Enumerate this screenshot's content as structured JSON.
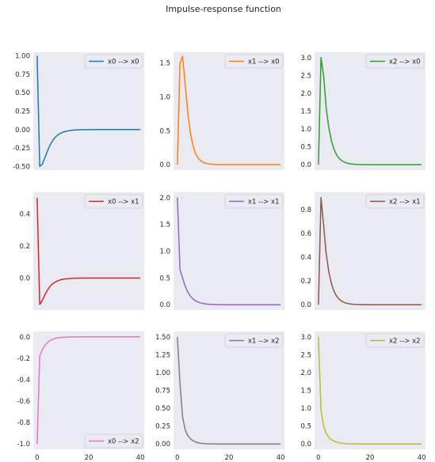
{
  "title": "Impulse-response function",
  "chart_data": {
    "type": "line",
    "title": "Impulse-response function",
    "grid": false,
    "x_start": 0,
    "x_step": 1,
    "panels": [
      {
        "name": "x0 --> x0",
        "color": "#1f77b4",
        "legend_loc": "upper right",
        "ylim": [
          -0.55,
          1.05
        ],
        "yticks": [
          -0.5,
          -0.25,
          0.0,
          0.25,
          0.5,
          0.75,
          1.0
        ],
        "ytick_labels": [
          "-0.50",
          "-0.25",
          "0.00",
          "0.25",
          "0.50",
          "0.75",
          "1.00"
        ],
        "values": [
          1.0,
          -0.5,
          -0.47,
          -0.38,
          -0.29,
          -0.21,
          -0.15,
          -0.105,
          -0.074,
          -0.052,
          -0.036,
          -0.025,
          -0.017,
          -0.012,
          -0.008,
          -0.0055,
          -0.0038,
          -0.0026,
          -0.0018,
          -0.0012,
          -0.0008,
          -0.0005,
          -0.0003,
          -0.0002,
          -0.0001,
          -5e-05,
          0,
          0,
          0,
          0,
          0,
          0,
          0,
          0,
          0,
          0,
          0,
          0,
          0,
          0,
          0
        ]
      },
      {
        "name": "x1 --> x0",
        "color": "#ff7f0e",
        "legend_loc": "upper right",
        "ylim": [
          -0.08,
          1.66
        ],
        "yticks": [
          0.0,
          0.5,
          1.0,
          1.5
        ],
        "ytick_labels": [
          "0.0",
          "0.5",
          "1.0",
          "1.5"
        ],
        "values": [
          0.0,
          1.5,
          1.6,
          1.2,
          0.78,
          0.48,
          0.29,
          0.17,
          0.1,
          0.058,
          0.034,
          0.02,
          0.012,
          0.007,
          0.004,
          0.0023,
          0.0013,
          0.0008,
          0.0005,
          0.0003,
          0.0002,
          0.0001,
          0,
          0,
          0,
          0,
          0,
          0,
          0,
          0,
          0,
          0,
          0,
          0,
          0,
          0,
          0,
          0,
          0,
          0,
          0
        ]
      },
      {
        "name": "x2 --> x0",
        "color": "#2ca02c",
        "legend_loc": "upper right",
        "ylim": [
          -0.15,
          3.15
        ],
        "yticks": [
          0.0,
          0.5,
          1.0,
          1.5,
          2.0,
          2.5,
          3.0
        ],
        "ytick_labels": [
          "0.0",
          "0.5",
          "1.0",
          "1.5",
          "2.0",
          "2.5",
          "3.0"
        ],
        "values": [
          0.0,
          3.0,
          2.5,
          1.6,
          1.05,
          0.68,
          0.44,
          0.28,
          0.18,
          0.115,
          0.074,
          0.047,
          0.03,
          0.019,
          0.012,
          0.0078,
          0.005,
          0.0032,
          0.002,
          0.0013,
          0.0008,
          0.0005,
          0.0003,
          0.0002,
          0.0001,
          0,
          0,
          0,
          0,
          0,
          0,
          0,
          0,
          0,
          0,
          0,
          0,
          0,
          0,
          0,
          0
        ]
      },
      {
        "name": "x0 --> x1",
        "color": "#d62728",
        "legend_loc": "upper right",
        "ylim": [
          -0.2,
          0.535
        ],
        "yticks": [
          0.0,
          0.2,
          0.4
        ],
        "ytick_labels": [
          "0.0",
          "0.2",
          "0.4"
        ],
        "values": [
          0.5,
          -0.165,
          -0.14,
          -0.105,
          -0.075,
          -0.052,
          -0.036,
          -0.025,
          -0.017,
          -0.0115,
          -0.0078,
          -0.0053,
          -0.0036,
          -0.0024,
          -0.0016,
          -0.0011,
          -0.0007,
          -0.0005,
          -0.0003,
          -0.0002,
          -0.0001,
          0,
          0,
          0,
          0,
          0,
          0,
          0,
          0,
          0,
          0,
          0,
          0,
          0,
          0,
          0,
          0,
          0,
          0,
          0,
          0
        ]
      },
      {
        "name": "x1 --> x1",
        "color": "#9467bd",
        "legend_loc": "upper right",
        "ylim": [
          -0.1,
          2.1
        ],
        "yticks": [
          0.0,
          0.5,
          1.0,
          1.5,
          2.0
        ],
        "ytick_labels": [
          "0.0",
          "0.5",
          "1.0",
          "1.5",
          "2.0"
        ],
        "values": [
          2.0,
          0.66,
          0.5,
          0.35,
          0.24,
          0.16,
          0.11,
          0.075,
          0.05,
          0.034,
          0.023,
          0.015,
          0.01,
          0.007,
          0.0047,
          0.0032,
          0.0021,
          0.0014,
          0.001,
          0.0006,
          0.0004,
          0.0003,
          0.0002,
          0.0001,
          0,
          0,
          0,
          0,
          0,
          0,
          0,
          0,
          0,
          0,
          0,
          0,
          0,
          0,
          0,
          0,
          0
        ]
      },
      {
        "name": "x2 --> x1",
        "color": "#8c564b",
        "legend_loc": "upper right",
        "ylim": [
          -0.045,
          0.945
        ],
        "yticks": [
          0.0,
          0.2,
          0.4,
          0.6,
          0.8
        ],
        "ytick_labels": [
          "0.0",
          "0.2",
          "0.4",
          "0.6",
          "0.8"
        ],
        "values": [
          0.0,
          0.9,
          0.67,
          0.43,
          0.28,
          0.18,
          0.115,
          0.074,
          0.047,
          0.03,
          0.019,
          0.012,
          0.0078,
          0.005,
          0.0032,
          0.002,
          0.0013,
          0.0008,
          0.0005,
          0.0003,
          0.0002,
          0.0001,
          0,
          0,
          0,
          0,
          0,
          0,
          0,
          0,
          0,
          0,
          0,
          0,
          0,
          0,
          0,
          0,
          0,
          0,
          0
        ]
      },
      {
        "name": "x0 --> x2",
        "color": "#e377c2",
        "legend_loc": "lower right",
        "ylim": [
          -1.05,
          0.05
        ],
        "yticks": [
          -1.0,
          -0.8,
          -0.6,
          -0.4,
          -0.2,
          0.0
        ],
        "ytick_labels": [
          "-1.0",
          "-0.8",
          "-0.6",
          "-0.4",
          "-0.2",
          "0.0"
        ],
        "values": [
          -1.0,
          -0.18,
          -0.12,
          -0.08,
          -0.053,
          -0.035,
          -0.023,
          -0.015,
          -0.01,
          -0.0066,
          -0.0044,
          -0.0029,
          -0.0019,
          -0.0013,
          -0.0008,
          -0.0005,
          -0.0004,
          -0.0002,
          -0.0002,
          -0.0001,
          0,
          0,
          0,
          0,
          0,
          0,
          0,
          0,
          0,
          0,
          0,
          0,
          0,
          0,
          0,
          0,
          0,
          0,
          0,
          0,
          0
        ]
      },
      {
        "name": "x1 --> x2",
        "color": "#7f7f7f",
        "legend_loc": "upper right",
        "ylim": [
          -0.075,
          1.575
        ],
        "yticks": [
          0.0,
          0.25,
          0.5,
          0.75,
          1.0,
          1.25,
          1.5
        ],
        "ytick_labels": [
          "0.00",
          "0.25",
          "0.50",
          "0.75",
          "1.00",
          "1.25",
          "1.50"
        ],
        "values": [
          1.5,
          0.85,
          0.38,
          0.2,
          0.12,
          0.075,
          0.046,
          0.029,
          0.018,
          0.011,
          0.007,
          0.0044,
          0.0028,
          0.0017,
          0.0011,
          0.0007,
          0.0004,
          0.0003,
          0.0002,
          0.0001,
          0,
          0,
          0,
          0,
          0,
          0,
          0,
          0,
          0,
          0,
          0,
          0,
          0,
          0,
          0,
          0,
          0,
          0,
          0,
          0,
          0
        ]
      },
      {
        "name": "x2 --> x2",
        "color": "#bcbd22",
        "legend_loc": "upper right",
        "ylim": [
          -0.15,
          3.15
        ],
        "yticks": [
          0.0,
          0.5,
          1.0,
          1.5,
          2.0,
          2.5,
          3.0
        ],
        "ytick_labels": [
          "0.0",
          "0.5",
          "1.0",
          "1.5",
          "2.0",
          "2.5",
          "3.0"
        ],
        "values": [
          3.0,
          0.95,
          0.5,
          0.3,
          0.19,
          0.12,
          0.08,
          0.052,
          0.034,
          0.022,
          0.014,
          0.009,
          0.006,
          0.0039,
          0.0025,
          0.0016,
          0.001,
          0.0007,
          0.0004,
          0.0003,
          0.0002,
          0.0001,
          0,
          0,
          0,
          0,
          0,
          0,
          0,
          0,
          0,
          0,
          0,
          0,
          0,
          0,
          0,
          0,
          0,
          0,
          0
        ]
      }
    ],
    "xlim": [
      -1.5,
      41.5
    ],
    "xticks": [
      0,
      20,
      40
    ],
    "xtick_labels": [
      "0",
      "20",
      "40"
    ]
  }
}
